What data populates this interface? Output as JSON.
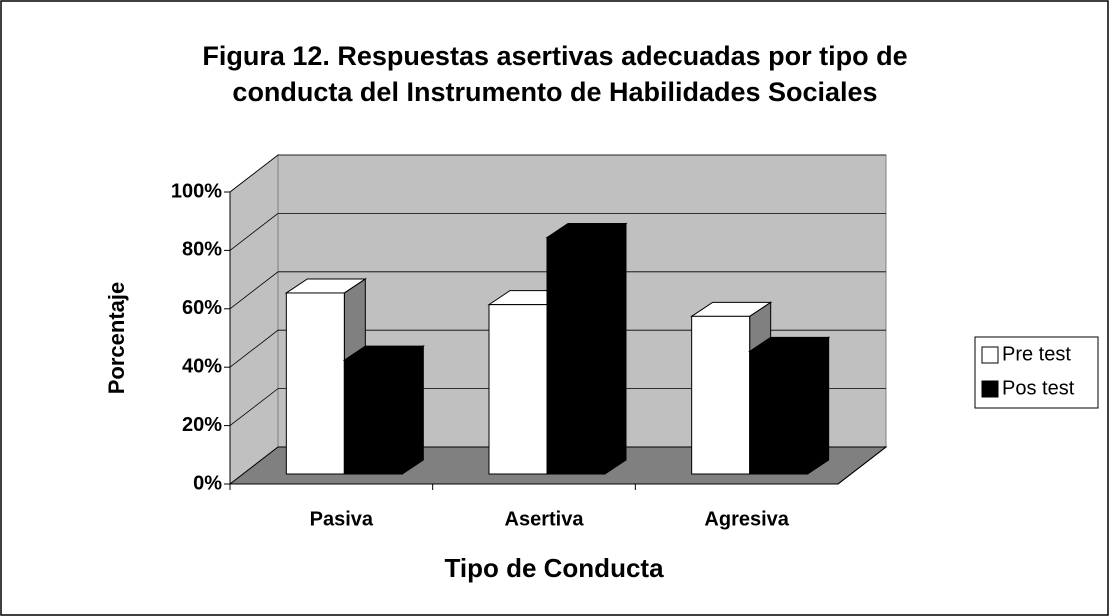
{
  "chart_data": {
    "type": "bar3d",
    "title": "Figura 12. Respuestas asertivas adecuadas por tipo de conducta del Instrumento de Habilidades Sociales",
    "x_label": "Tipo de Conducta",
    "y_label": "Porcentaje",
    "categories": [
      "Pasiva",
      "Asertiva",
      "Agresiva"
    ],
    "series": [
      {
        "name": "Pre test",
        "color": "#ffffff",
        "values": [
          62,
          58,
          54
        ]
      },
      {
        "name": "Pos test",
        "color": "#000000",
        "values": [
          39,
          81,
          42
        ]
      }
    ],
    "ylim": [
      0,
      100
    ],
    "yticks": [
      {
        "value": 0,
        "label": "0%"
      },
      {
        "value": 20,
        "label": "20%"
      },
      {
        "value": 40,
        "label": "40%"
      },
      {
        "value": 60,
        "label": "60%"
      },
      {
        "value": 80,
        "label": "80%"
      },
      {
        "value": 100,
        "label": "100%"
      }
    ],
    "grid": true,
    "legend": "right"
  }
}
